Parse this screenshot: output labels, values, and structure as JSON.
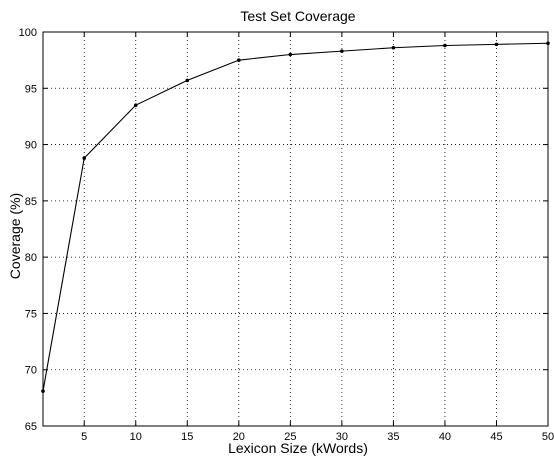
{
  "chart_data": {
    "type": "line",
    "title": "Test Set Coverage",
    "xlabel": "Lexicon Size (kWords)",
    "ylabel": "Coverage (%)",
    "xlim": [
      1,
      50
    ],
    "ylim": [
      65,
      100
    ],
    "xticks": [
      5,
      10,
      15,
      20,
      25,
      30,
      35,
      40,
      45,
      50
    ],
    "yticks": [
      65,
      70,
      75,
      80,
      85,
      90,
      95,
      100
    ],
    "grid": true,
    "legend": false,
    "colors": {
      "line": "#000000",
      "background": "#ffffff"
    },
    "series": [
      {
        "x": [
          1,
          5,
          10,
          15,
          20,
          25,
          30,
          35,
          40,
          45,
          50
        ],
        "y": [
          68.1,
          88.8,
          93.5,
          95.7,
          97.5,
          98.0,
          98.3,
          98.6,
          98.8,
          98.9,
          99.0
        ]
      }
    ]
  }
}
